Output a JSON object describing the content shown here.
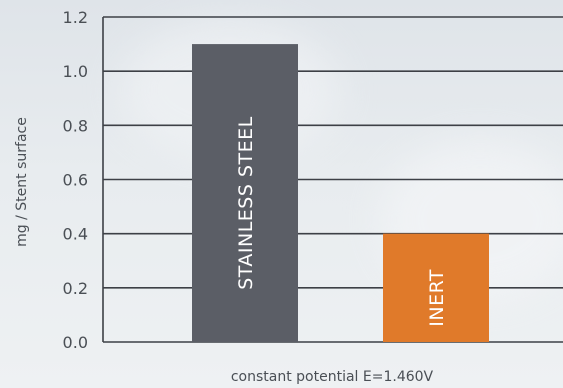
{
  "chart_data": {
    "type": "bar",
    "categories": [
      "STAINLESS STEEL",
      "INERT"
    ],
    "values": [
      1.1,
      0.4
    ],
    "colors": [
      "#5b5e66",
      "#e07a2a"
    ],
    "title": "",
    "xlabel": "constant potential E=1.460V",
    "ylabel": "mg / Stent  surface",
    "ylim": [
      0,
      1.2
    ],
    "yticks": [
      "0.0",
      "0.2",
      "0.4",
      "0.6",
      "0.8",
      "1.0",
      "1.2"
    ],
    "grid": true
  }
}
